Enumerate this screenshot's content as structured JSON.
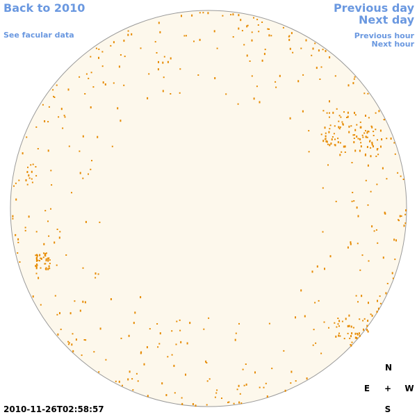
{
  "links": {
    "back": "Back to 2010",
    "facular": "See facular data",
    "previous_day": "Previous day",
    "next_day": "Next day",
    "previous_hour": "Previous hour",
    "next_hour": "Next hour"
  },
  "timestamp": "2010-11-26T02:58:57",
  "compass": {
    "north": "N",
    "east": "E",
    "center": "+",
    "west": "W",
    "south": "S"
  }
}
